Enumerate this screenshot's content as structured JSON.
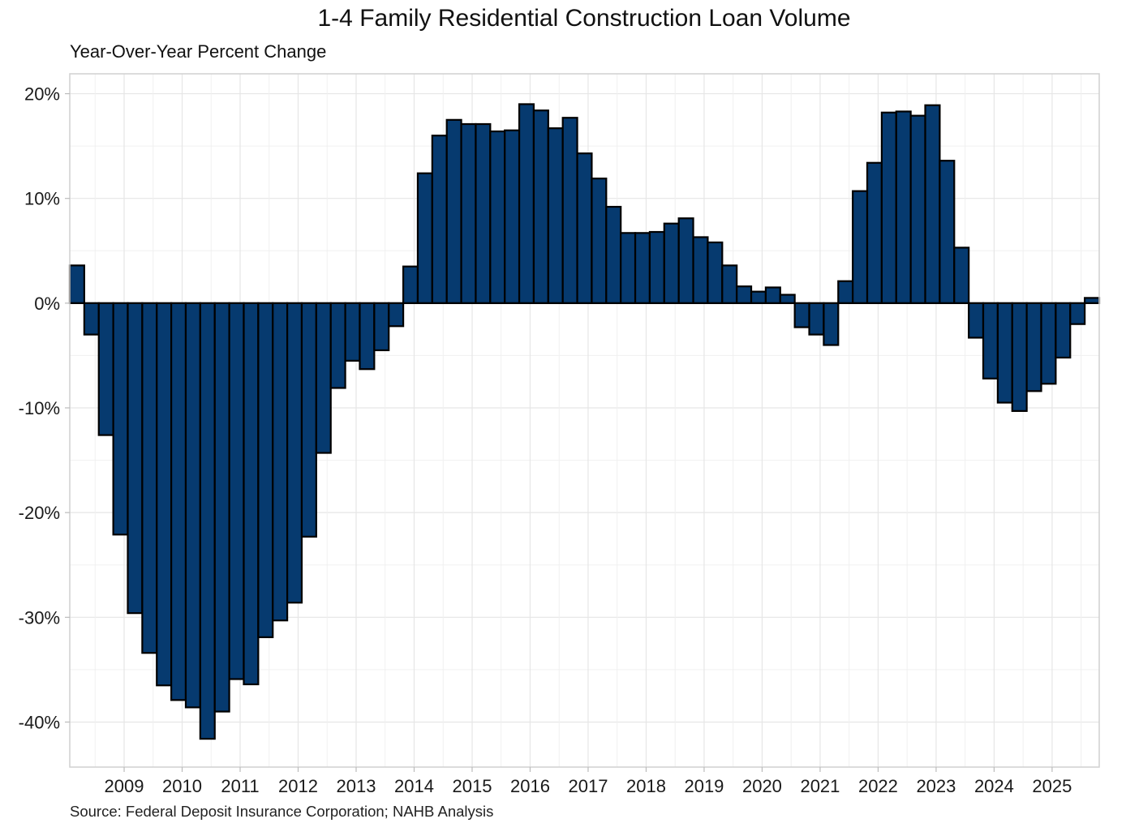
{
  "chart_data": {
    "type": "bar",
    "title": "1-4 Family Residential Construction Loan Volume",
    "subtitle": "Year-Over-Year Percent Change",
    "source": "Source: Federal Deposit Insurance Corporation; NAHB Analysis",
    "xlabel": "",
    "ylabel": "",
    "frequency": "quarterly",
    "ylim": [
      -44.3,
      21.9
    ],
    "y_ticks": [
      20,
      10,
      0,
      -10,
      -20,
      -30,
      -40
    ],
    "y_tick_labels": [
      "20%",
      "10%",
      "0%",
      "-10%",
      "-20%",
      "-30%",
      "-40%"
    ],
    "x_tick_labels": [
      "2009",
      "2010",
      "2011",
      "2012",
      "2013",
      "2014",
      "2015",
      "2016",
      "2017",
      "2018",
      "2019",
      "2020",
      "2021",
      "2022",
      "2023",
      "2024",
      "2025"
    ],
    "first_tick_offset_quarters": 3.75,
    "grid": true,
    "legend": "none",
    "colors": {
      "bar_fill": "#063a6f",
      "bar_stroke": "#000000",
      "grid": "#e6e6e6",
      "frame": "#d0d0d0"
    },
    "series": [
      {
        "name": "YoY % change",
        "values": [
          3.6,
          -3.0,
          -12.6,
          -22.1,
          -29.6,
          -33.4,
          -36.5,
          -37.9,
          -38.6,
          -41.6,
          -39.0,
          -35.9,
          -36.4,
          -31.9,
          -30.3,
          -28.6,
          -22.3,
          -14.3,
          -8.1,
          -5.5,
          -6.3,
          -4.5,
          -2.2,
          3.5,
          12.4,
          16.0,
          17.5,
          17.1,
          17.1,
          16.4,
          16.5,
          19.0,
          18.4,
          16.7,
          17.7,
          14.3,
          11.9,
          9.2,
          6.7,
          6.7,
          6.8,
          7.6,
          8.1,
          6.3,
          5.8,
          3.6,
          1.6,
          1.1,
          1.5,
          0.8,
          -2.3,
          -3.0,
          -4.0,
          2.1,
          10.7,
          13.4,
          18.2,
          18.3,
          17.9,
          18.9,
          13.6,
          5.3,
          -3.3,
          -7.2,
          -9.5,
          -10.3,
          -8.4,
          -7.7,
          -5.2,
          -2.0,
          0.5
        ]
      }
    ]
  }
}
